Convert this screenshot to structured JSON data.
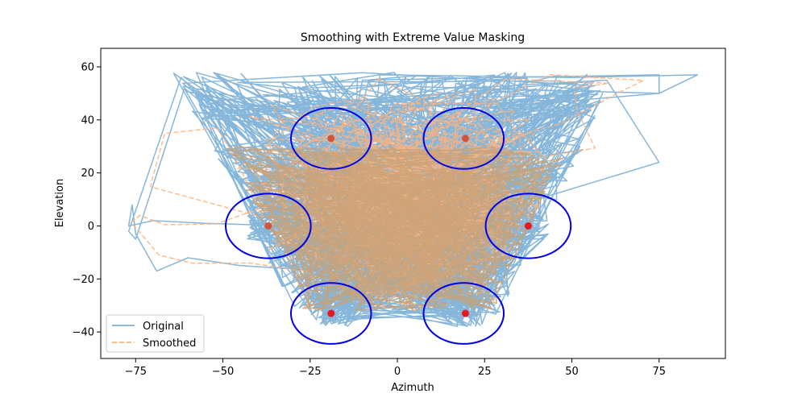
{
  "chart_data": {
    "type": "line",
    "title": "Smoothing with Extreme Value Masking",
    "xlabel": "Azimuth",
    "ylabel": "Elevation",
    "xlim": [
      -85,
      94
    ],
    "ylim": [
      -50,
      67
    ],
    "xticks": [
      -75,
      -50,
      -25,
      0,
      25,
      50,
      75
    ],
    "yticks": [
      -40,
      -20,
      0,
      20,
      40,
      60
    ],
    "xtick_labels": [
      "−75",
      "−50",
      "−25",
      "0",
      "25",
      "50",
      "75"
    ],
    "ytick_labels": [
      "−40",
      "−20",
      "0",
      "20",
      "40",
      "60"
    ],
    "grid": false,
    "legend_position": "lower-left",
    "series": [
      {
        "name": "Original",
        "style": "solid",
        "color": "#7fb3d9"
      },
      {
        "name": "Smoothed",
        "style": "dashed",
        "color": "#ffb27a"
      }
    ],
    "highlight_points": [
      {
        "x": -19,
        "y": 33,
        "color": "#d2553a"
      },
      {
        "x": 19.5,
        "y": 33,
        "color": "#d2553a"
      },
      {
        "x": -37,
        "y": 0,
        "color": "#d2553a"
      },
      {
        "x": 37.5,
        "y": 0,
        "color": "#e8171f"
      },
      {
        "x": -19,
        "y": -33,
        "color": "#e8171f"
      },
      {
        "x": 19.5,
        "y": -33,
        "color": "#e8171f"
      }
    ],
    "ellipses": [
      {
        "cx": -19,
        "cy": 33,
        "rx": 11.5,
        "ry": 11.5
      },
      {
        "cx": 19,
        "cy": 33,
        "rx": 11.5,
        "ry": 11.5
      },
      {
        "cx": -37,
        "cy": 0,
        "rx": 12.2,
        "ry": 12.2
      },
      {
        "cx": 37.5,
        "cy": 0,
        "rx": 12.2,
        "ry": 12.2
      },
      {
        "cx": -19,
        "cy": -33,
        "rx": 11.5,
        "ry": 11.5
      },
      {
        "cx": 19,
        "cy": -33,
        "rx": 11.5,
        "ry": 11.5
      }
    ],
    "ellipse_color": "#0000e6"
  }
}
